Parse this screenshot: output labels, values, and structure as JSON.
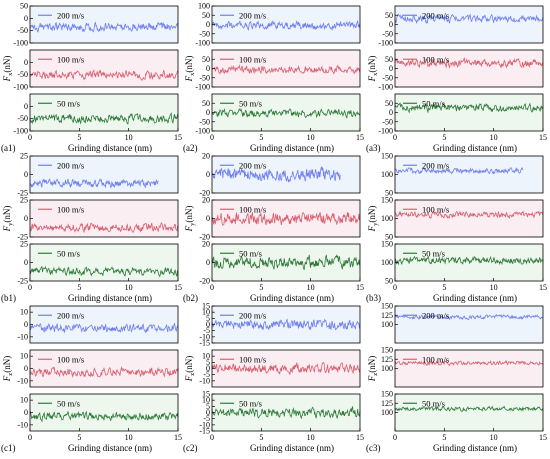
{
  "figure": {
    "rows": [
      {
        "force_label_main": "F",
        "force_label_sub": "x",
        "force_unit": "(nN)",
        "panel_labels": [
          "(a1)",
          "(a2)",
          "(a3)"
        ]
      },
      {
        "force_label_main": "F",
        "force_label_sub": "y",
        "force_unit": "(nN)",
        "panel_labels": [
          "(b1)",
          "(b2)",
          "(b3)"
        ]
      },
      {
        "force_label_main": "F",
        "force_label_sub": "z",
        "force_unit": "(nN)",
        "panel_labels": [
          "(c1)",
          "(c2)",
          "(c3)"
        ]
      }
    ],
    "xlabel": "Grinding distance (nm)",
    "series_colors": {
      "200 m/s": "#6f7ff0",
      "100 m/s": "#d86070",
      "50 m/s": "#2f7a3a"
    }
  },
  "chart_data": [
    {
      "id": "a1",
      "type": "line",
      "panel": "(a1)",
      "ylabel": "Fx (nN)",
      "xlabel": "Grinding distance (nm)",
      "xlim": [
        0,
        15
      ],
      "xticks": [
        0,
        5,
        10,
        15
      ],
      "subplots": [
        {
          "name": "200 m/s",
          "ylim": [
            -100,
            50
          ],
          "yticks": [
            50,
            0,
            -50,
            -100
          ],
          "mean": -35,
          "amp": 25,
          "x_end": 15
        },
        {
          "name": "100 m/s",
          "ylim": [
            -100,
            50
          ],
          "yticks": [
            0,
            -50,
            -100
          ],
          "mean": -50,
          "amp": 25,
          "x_end": 15
        },
        {
          "name": "50 m/s",
          "ylim": [
            -100,
            50
          ],
          "yticks": [
            0,
            -50,
            -100
          ],
          "mean": -50,
          "amp": 25,
          "x_end": 15
        }
      ]
    },
    {
      "id": "a2",
      "type": "line",
      "panel": "(a2)",
      "ylabel": "Fx (nN)",
      "xlabel": "Grinding distance (nm)",
      "xlim": [
        0,
        15
      ],
      "xticks": [
        0,
        5,
        10,
        15
      ],
      "subplots": [
        {
          "name": "200 m/s",
          "ylim": [
            -100,
            100
          ],
          "yticks": [
            100,
            50,
            0,
            -50,
            -100
          ],
          "mean": -5,
          "amp": 30,
          "x_end": 15
        },
        {
          "name": "100 m/s",
          "ylim": [
            -100,
            100
          ],
          "yticks": [
            50,
            0,
            -50,
            -100
          ],
          "mean": -5,
          "amp": 30,
          "x_end": 15
        },
        {
          "name": "50 m/s",
          "ylim": [
            -100,
            100
          ],
          "yticks": [
            50,
            0,
            -50,
            -100
          ],
          "mean": -5,
          "amp": 30,
          "x_end": 15
        }
      ]
    },
    {
      "id": "a3",
      "type": "line",
      "panel": "(a3)",
      "ylabel": "Fx (nN)",
      "xlabel": "Grinding distance (nm)",
      "xlim": [
        0,
        15
      ],
      "xticks": [
        0,
        5,
        10,
        15
      ],
      "subplots": [
        {
          "name": "200 m/s",
          "ylim": [
            -100,
            100
          ],
          "yticks": [
            50,
            0,
            -50,
            -100
          ],
          "mean": 30,
          "amp": 30,
          "x_end": 15
        },
        {
          "name": "100 m/s",
          "ylim": [
            -100,
            100
          ],
          "yticks": [
            50,
            0,
            -50,
            -100
          ],
          "mean": 30,
          "amp": 30,
          "x_end": 15
        },
        {
          "name": "50 m/s",
          "ylim": [
            -100,
            100
          ],
          "yticks": [
            50,
            0,
            -50,
            -100
          ],
          "mean": 25,
          "amp": 30,
          "x_end": 15
        }
      ]
    },
    {
      "id": "b1",
      "type": "line",
      "panel": "(b1)",
      "ylabel": "Fy (nN)",
      "xlabel": "Grinding distance (nm)",
      "xlim": [
        0,
        15
      ],
      "xticks": [
        0,
        5,
        10,
        15
      ],
      "subplots": [
        {
          "name": "200 m/s",
          "ylim": [
            -25,
            25
          ],
          "yticks": [
            25,
            0,
            -25
          ],
          "mean": -12,
          "amp": 8,
          "x_end": 13
        },
        {
          "name": "100 m/s",
          "ylim": [
            -25,
            25
          ],
          "yticks": [
            25,
            0,
            -25
          ],
          "mean": -12,
          "amp": 8,
          "x_end": 15
        },
        {
          "name": "50 m/s",
          "ylim": [
            -25,
            25
          ],
          "yticks": [
            25,
            0,
            -25
          ],
          "mean": -12,
          "amp": 8,
          "x_end": 15
        }
      ]
    },
    {
      "id": "b2",
      "type": "line",
      "panel": "(b2)",
      "ylabel": "Fy (nN)",
      "xlabel": "Grinding distance (nm)",
      "xlim": [
        0,
        15
      ],
      "xticks": [
        0,
        5,
        10,
        15
      ],
      "subplots": [
        {
          "name": "200 m/s",
          "ylim": [
            -20,
            20
          ],
          "yticks": [
            20,
            0,
            -20
          ],
          "mean": 0,
          "amp": 10,
          "x_end": 13
        },
        {
          "name": "100 m/s",
          "ylim": [
            -20,
            20
          ],
          "yticks": [
            20,
            0,
            -20
          ],
          "mean": 0,
          "amp": 10,
          "x_end": 15
        },
        {
          "name": "50 m/s",
          "ylim": [
            -20,
            20
          ],
          "yticks": [
            20,
            0,
            -20
          ],
          "mean": 0,
          "amp": 10,
          "x_end": 15
        }
      ]
    },
    {
      "id": "b3",
      "type": "line",
      "panel": "(b3)",
      "ylabel": "Fy (nN)",
      "xlabel": "Grinding distance (nm)",
      "xlim": [
        0,
        15
      ],
      "xticks": [
        0,
        5,
        10,
        15
      ],
      "subplots": [
        {
          "name": "200 m/s",
          "ylim": [
            50,
            150
          ],
          "yticks": [
            150,
            100,
            50
          ],
          "mean": 110,
          "amp": 10,
          "x_end": 13
        },
        {
          "name": "100 m/s",
          "ylim": [
            50,
            150
          ],
          "yticks": [
            150,
            100,
            50
          ],
          "mean": 110,
          "amp": 12,
          "x_end": 15
        },
        {
          "name": "50 m/s",
          "ylim": [
            50,
            150
          ],
          "yticks": [
            150,
            100,
            50
          ],
          "mean": 105,
          "amp": 14,
          "x_end": 15
        }
      ]
    },
    {
      "id": "c1",
      "type": "line",
      "panel": "(c1)",
      "ylabel": "Fz (nN)",
      "xlabel": "Grinding distance (nm)",
      "xlim": [
        0,
        15
      ],
      "xticks": [
        0,
        5,
        10,
        15
      ],
      "subplots": [
        {
          "name": "200 m/s",
          "ylim": [
            -15,
            15
          ],
          "yticks": [
            10,
            0,
            -10
          ],
          "mean": -3,
          "amp": 5,
          "x_end": 15
        },
        {
          "name": "100 m/s",
          "ylim": [
            -15,
            15
          ],
          "yticks": [
            10,
            0,
            -10
          ],
          "mean": -3,
          "amp": 5,
          "x_end": 15
        },
        {
          "name": "50 m/s",
          "ylim": [
            -15,
            15
          ],
          "yticks": [
            10,
            0,
            -10
          ],
          "mean": -3,
          "amp": 5,
          "x_end": 15
        }
      ]
    },
    {
      "id": "c2",
      "type": "line",
      "panel": "(c2)",
      "ylabel": "Fz (nN)",
      "xlabel": "Grinding distance (nm)",
      "xlim": [
        0,
        15
      ],
      "xticks": [
        0,
        5,
        10,
        15
      ],
      "subplots": [
        {
          "name": "200 m/s",
          "ylim": [
            -15,
            15
          ],
          "yticks": [
            15,
            10,
            5,
            0,
            -5,
            -10,
            -15
          ],
          "mean": 0,
          "amp": 6,
          "x_end": 15
        },
        {
          "name": "100 m/s",
          "ylim": [
            -15,
            15
          ],
          "yticks": [
            10,
            5,
            0,
            -5,
            -10
          ],
          "mean": 0,
          "amp": 6,
          "x_end": 15
        },
        {
          "name": "50 m/s",
          "ylim": [
            -15,
            15
          ],
          "yticks": [
            15,
            10,
            5,
            0,
            -5,
            -10,
            -15
          ],
          "mean": 0,
          "amp": 6,
          "x_end": 15
        }
      ]
    },
    {
      "id": "c3",
      "type": "line",
      "panel": "(c3)",
      "ylabel": "Fz (nN)",
      "xlabel": "Grinding distance (nm)",
      "xlim": [
        0,
        15
      ],
      "xticks": [
        0,
        5,
        10,
        15
      ],
      "subplots": [
        {
          "name": "200 m/s",
          "ylim": [
            50,
            150
          ],
          "yticks": [
            150,
            125,
            100
          ],
          "mean": 120,
          "amp": 8,
          "x_end": 15
        },
        {
          "name": "100 m/s",
          "ylim": [
            50,
            150
          ],
          "yticks": [
            150,
            125,
            100
          ],
          "mean": 115,
          "amp": 8,
          "x_end": 15
        },
        {
          "name": "50 m/s",
          "ylim": [
            50,
            150
          ],
          "yticks": [
            150,
            125,
            100
          ],
          "mean": 110,
          "amp": 8,
          "x_end": 15
        }
      ]
    }
  ]
}
